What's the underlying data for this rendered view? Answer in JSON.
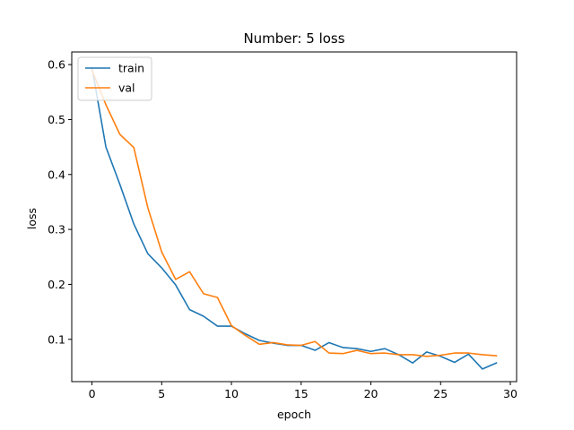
{
  "chart_data": {
    "type": "line",
    "title": "Number: 5 loss",
    "xlabel": "epoch",
    "ylabel": "loss",
    "xlim": [
      -1.45,
      30.45
    ],
    "ylim": [
      0.023,
      0.623
    ],
    "xticks": [
      0,
      5,
      10,
      15,
      20,
      25,
      30
    ],
    "yticks": [
      0.1,
      0.2,
      0.3,
      0.4,
      0.5,
      0.6
    ],
    "ytick_labels": [
      "0.1",
      "0.2",
      "0.3",
      "0.4",
      "0.5",
      "0.6"
    ],
    "grid": false,
    "legend_position": "top-left",
    "x": [
      0,
      1,
      2,
      3,
      4,
      5,
      6,
      7,
      8,
      9,
      10,
      11,
      12,
      13,
      14,
      15,
      16,
      17,
      18,
      19,
      20,
      21,
      22,
      23,
      24,
      25,
      26,
      27,
      28,
      29
    ],
    "series": [
      {
        "name": "train",
        "color": "#1f77b4",
        "values": [
          0.595,
          0.45,
          0.382,
          0.31,
          0.256,
          0.23,
          0.199,
          0.154,
          0.142,
          0.124,
          0.124,
          0.11,
          0.098,
          0.093,
          0.089,
          0.089,
          0.08,
          0.094,
          0.085,
          0.083,
          0.078,
          0.083,
          0.072,
          0.057,
          0.077,
          0.069,
          0.058,
          0.073,
          0.046,
          0.057
        ]
      },
      {
        "name": "val",
        "color": "#ff7f0e",
        "values": [
          0.59,
          0.527,
          0.473,
          0.449,
          0.34,
          0.259,
          0.209,
          0.223,
          0.183,
          0.176,
          0.125,
          0.107,
          0.091,
          0.094,
          0.09,
          0.089,
          0.096,
          0.075,
          0.074,
          0.08,
          0.074,
          0.075,
          0.072,
          0.072,
          0.069,
          0.071,
          0.075,
          0.075,
          0.072,
          0.07
        ]
      }
    ]
  }
}
